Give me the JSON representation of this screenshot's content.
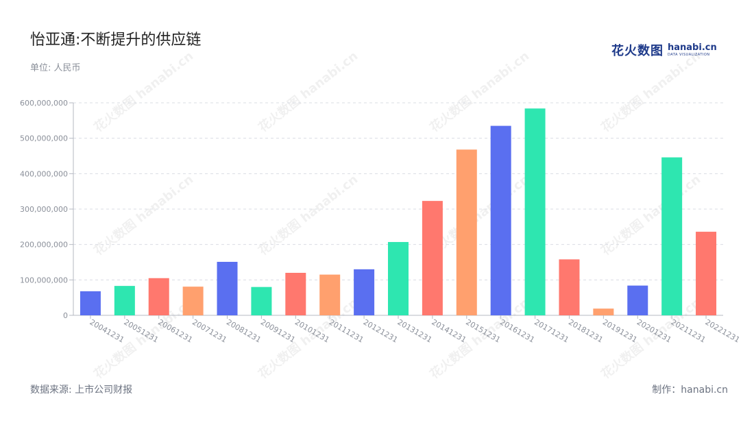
{
  "header": {
    "title": "怡亚通:不断提升的供应链",
    "subtitle": "单位: 人民币"
  },
  "footer": {
    "source": "数据来源: 上市公司财报",
    "credit": "制作：hanabi.cn"
  },
  "logo": {
    "cn": "花火数图",
    "en": "hanabi.cn",
    "en_sub": "DATA VISUALIZATION"
  },
  "watermark": {
    "text": "花火数图 hanabi.cn"
  },
  "colors": {
    "blue": "#5a6ff0",
    "green": "#2ee6b0",
    "red": "#ff786e",
    "orange": "#ffa06e",
    "grid": "#d9dce3",
    "tick": "#8a8f99"
  },
  "chart_data": {
    "type": "bar",
    "categories": [
      "20041231",
      "20051231",
      "20061231",
      "20071231",
      "20081231",
      "20091231",
      "20101231",
      "20111231",
      "20121231",
      "20131231",
      "20141231",
      "20151231",
      "20161231",
      "20171231",
      "20181231",
      "20191231",
      "20201231",
      "20211231",
      "20221231"
    ],
    "values": [
      68000000,
      83000000,
      105000000,
      81000000,
      151000000,
      80000000,
      120000000,
      115000000,
      130000000,
      207000000,
      323000000,
      468000000,
      535000000,
      584000000,
      158000000,
      19000000,
      84000000,
      446000000,
      236000000
    ],
    "bar_colors": [
      "blue",
      "green",
      "red",
      "orange",
      "blue",
      "green",
      "red",
      "orange",
      "blue",
      "green",
      "red",
      "orange",
      "blue",
      "green",
      "red",
      "orange",
      "blue",
      "green",
      "red"
    ],
    "y_ticks": [
      "0",
      "100,000,000",
      "200,000,000",
      "300,000,000",
      "400,000,000",
      "500,000,000",
      "600,000,000"
    ],
    "ylim": [
      0,
      600000000
    ],
    "grid": true,
    "legend": "none"
  }
}
